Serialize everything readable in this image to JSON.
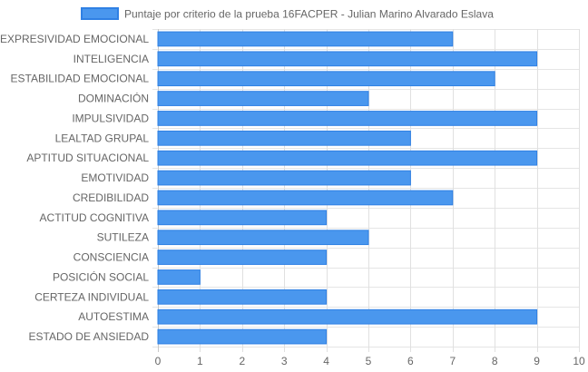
{
  "chart_data": {
    "type": "bar",
    "orientation": "horizontal",
    "categories": [
      "EXPRESIVIDAD EMOCIONAL",
      "INTELIGENCIA",
      "ESTABILIDAD EMOCIONAL",
      "DOMINACIÓN",
      "IMPULSIVIDAD",
      "LEALTAD GRUPAL",
      "APTITUD SITUACIONAL",
      "EMOTIVIDAD",
      "CREDIBILIDAD",
      "ACTITUD COGNITIVA",
      "SUTILEZA",
      "CONSCIENCIA",
      "POSICIÓN SOCIAL",
      "CERTEZA INDIVIDUAL",
      "AUTOESTIMA",
      "ESTADO DE ANSIEDAD"
    ],
    "series": [
      {
        "name": "Puntaje por criterio de la prueba 16FACPER - Julian Marino Alvarado Eslava",
        "values": [
          7,
          9,
          8,
          5,
          9,
          6,
          9,
          6,
          7,
          4,
          5,
          4,
          1,
          4,
          9,
          4
        ],
        "color": "#4a97ee",
        "border_color": "#2f80e4"
      }
    ],
    "xlim": [
      0,
      10
    ],
    "x_ticks": [
      "0",
      "1",
      "2",
      "3",
      "4",
      "5",
      "6",
      "7",
      "8",
      "9",
      "10"
    ],
    "grid": true,
    "legend_position": "top",
    "title": "",
    "xlabel": "",
    "ylabel": ""
  }
}
